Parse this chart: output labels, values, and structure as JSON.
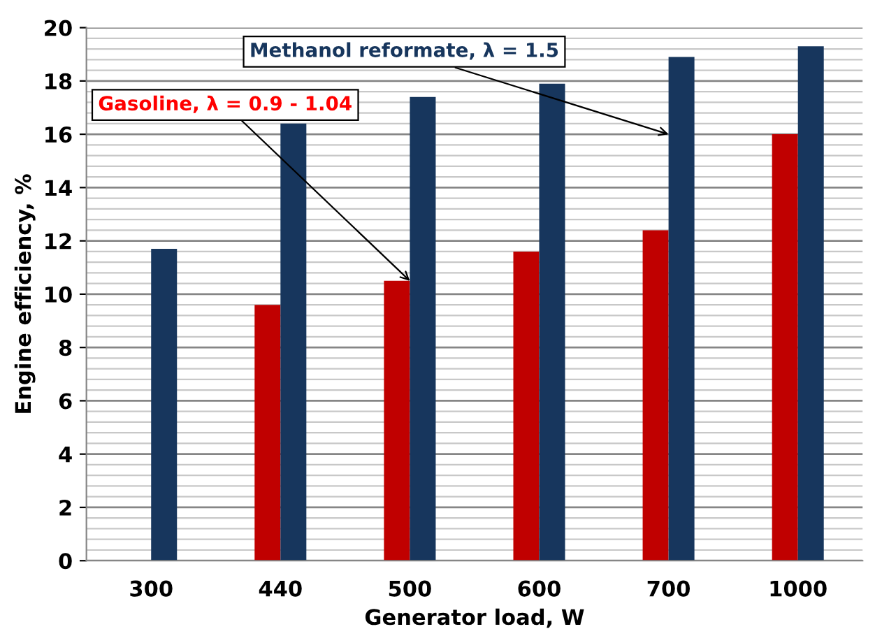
{
  "chart_data": {
    "type": "bar",
    "xlabel": "Generator load, W",
    "ylabel": "Engine efficiency, %",
    "categories": [
      "300",
      "440",
      "500",
      "600",
      "700",
      "1000"
    ],
    "series": [
      {
        "color": "#c00000",
        "values": [
          null,
          9.6,
          10.5,
          11.6,
          12.4,
          16.0
        ]
      },
      {
        "color": "#17365d",
        "values": [
          11.7,
          16.4,
          17.4,
          17.9,
          18.9,
          19.3
        ]
      }
    ],
    "annotations": [
      {
        "text": "Gasoline, λ = 0.9 - 1.04",
        "x": "500",
        "y": 10.5
      },
      {
        "text": "Methanol reformate, λ = 1.5",
        "x": "700",
        "y": 16
      }
    ],
    "ylim": [
      0,
      20
    ],
    "yticks": [
      0,
      2,
      4,
      6,
      8,
      10,
      12,
      14,
      16,
      18,
      20
    ],
    "grid": "y",
    "legend": false
  }
}
